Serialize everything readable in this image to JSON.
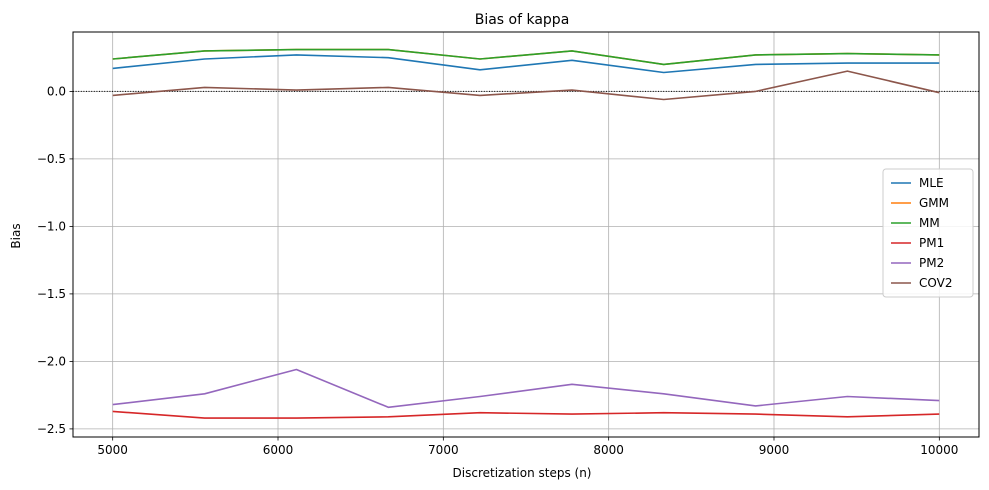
{
  "chart_data": {
    "type": "line",
    "title": "Bias of kappa",
    "xlabel": "Discretization steps (n)",
    "ylabel": "Bias",
    "xlim": [
      4760,
      10240
    ],
    "ylim": [
      -2.56,
      0.44
    ],
    "xticks": [
      5000,
      6000,
      7000,
      8000,
      9000,
      10000
    ],
    "yticks": [
      0.0,
      -0.5,
      -1.0,
      -1.5,
      -2.0,
      -2.5
    ],
    "ytick_labels": [
      "0.0",
      "−0.5",
      "−1.0",
      "−1.5",
      "−2.0",
      "−2.5"
    ],
    "grid": true,
    "reference_line": 0.0,
    "legend_position": "center-right",
    "x": [
      5000,
      5556,
      6111,
      6667,
      7222,
      7778,
      8333,
      8889,
      9444,
      10000
    ],
    "series": [
      {
        "name": "MLE",
        "color": "#1f77b4",
        "values": [
          0.17,
          0.24,
          0.27,
          0.25,
          0.16,
          0.23,
          0.14,
          0.2,
          0.21,
          0.21
        ]
      },
      {
        "name": "GMM",
        "color": "#ff7f0e",
        "values": [
          0.24,
          0.3,
          0.31,
          0.31,
          0.24,
          0.3,
          0.2,
          0.27,
          0.28,
          0.27
        ]
      },
      {
        "name": "MM",
        "color": "#2ca02c",
        "values": [
          0.24,
          0.3,
          0.31,
          0.31,
          0.24,
          0.3,
          0.2,
          0.27,
          0.28,
          0.27
        ]
      },
      {
        "name": "PM1",
        "color": "#d62728",
        "values": [
          -2.37,
          -2.42,
          -2.42,
          -2.41,
          -2.38,
          -2.39,
          -2.38,
          -2.39,
          -2.41,
          -2.39
        ]
      },
      {
        "name": "PM2",
        "color": "#9467bd",
        "values": [
          -2.32,
          -2.24,
          -2.06,
          -2.34,
          -2.26,
          -2.17,
          -2.24,
          -2.33,
          -2.26,
          -2.29
        ]
      },
      {
        "name": "COV2",
        "color": "#8c564b",
        "values": [
          -0.03,
          0.03,
          0.01,
          0.03,
          -0.03,
          0.01,
          -0.06,
          0.0,
          0.15,
          -0.01
        ]
      }
    ]
  }
}
